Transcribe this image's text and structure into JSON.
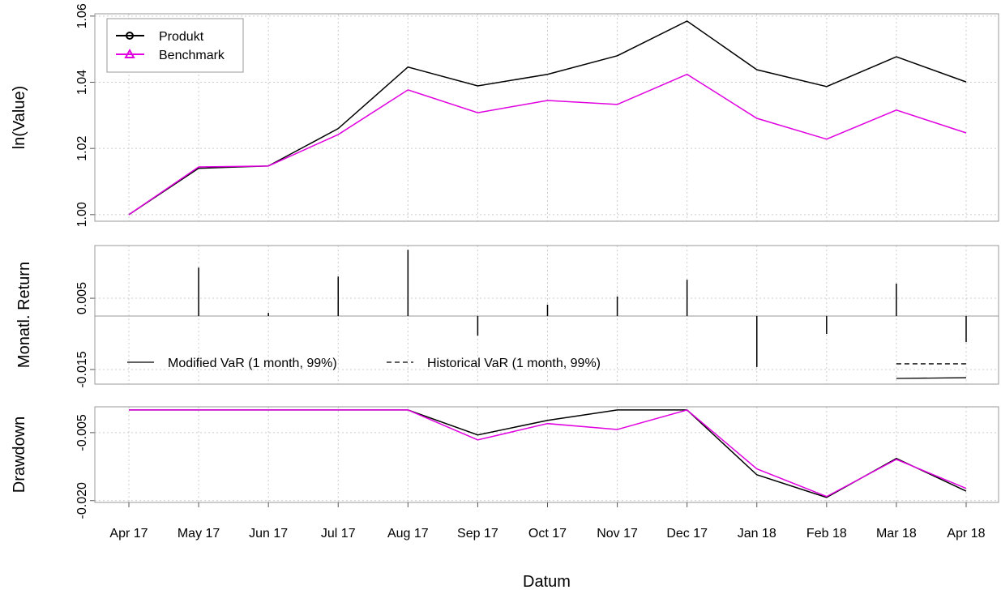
{
  "chart_data": [
    {
      "type": "line",
      "ylabel": "ln(Value)",
      "ylim": [
        0.998,
        1.0607
      ],
      "yticks": [
        {
          "value": 1,
          "label": "1.00"
        },
        1.02,
        1.04,
        1.06
      ],
      "grid": true,
      "legend": "top-left",
      "series": [
        {
          "name": "Produkt",
          "color": "#000000",
          "marker": "circle",
          "values": [
            1.0,
            1.014,
            1.0147,
            1.026,
            1.0446,
            1.0389,
            1.0424,
            1.048,
            1.0585,
            1.0438,
            1.0387,
            1.0477,
            1.0401
          ]
        },
        {
          "name": "Benchmark",
          "color": "#e000e0",
          "marker": "triangle",
          "values": [
            1.0,
            1.0144,
            1.0147,
            1.0242,
            1.0377,
            1.0308,
            1.0345,
            1.0333,
            1.0424,
            1.0291,
            1.0228,
            1.0316,
            1.0247
          ]
        }
      ]
    },
    {
      "type": "bar",
      "ylabel": "Monatl. Return",
      "ylim": [
        -0.0191,
        0.0198
      ],
      "yticks": [
        -0.015,
        0.005
      ],
      "grid": true,
      "legend": "bottom-left",
      "color": "#000000",
      "values": [
        0,
        0.0136,
        0.0009,
        0.0111,
        0.0186,
        -0.0055,
        0.0032,
        0.0055,
        0.0102,
        -0.0143,
        -0.005,
        0.0091,
        -0.0073
      ],
      "lines": [
        {
          "name": "Modified VaR (1 month, 99%)",
          "color": "#000000",
          "dashed": false,
          "values": [
            null,
            null,
            null,
            null,
            null,
            null,
            null,
            null,
            null,
            null,
            null,
            -0.0175,
            -0.0173
          ]
        },
        {
          "name": "Historical VaR (1 month, 99%)",
          "color": "#000000",
          "dashed": true,
          "values": [
            null,
            null,
            null,
            null,
            null,
            null,
            null,
            null,
            null,
            null,
            null,
            -0.0134,
            -0.0134
          ]
        }
      ]
    },
    {
      "type": "line",
      "ylabel": "Drawdown",
      "xlabel": "Datum",
      "ylim": [
        -0.0204,
        0.0007
      ],
      "yticks": [
        {
          "value": -0.02,
          "label": "-0.020"
        },
        -0.005
      ],
      "grid": true,
      "categories": [
        "Apr 17",
        "May 17",
        "Jun 17",
        "Jul 17",
        "Aug 17",
        "Sep 17",
        "Oct 17",
        "Nov 17",
        "Dec 17",
        "Jan 18",
        "Feb 18",
        "Mar 18",
        "Apr 18"
      ],
      "series": [
        {
          "name": "Produkt",
          "color": "#000000",
          "values": [
            0,
            0,
            0,
            0,
            0,
            -0.0055,
            -0.0023,
            0,
            0,
            -0.0143,
            -0.0193,
            -0.0107,
            -0.0179
          ]
        },
        {
          "name": "Benchmark",
          "color": "#e000e0",
          "values": [
            0,
            0,
            0,
            0,
            0,
            -0.0066,
            -0.003,
            -0.0043,
            0,
            -0.013,
            -0.0191,
            -0.0109,
            -0.0173
          ]
        }
      ]
    }
  ]
}
